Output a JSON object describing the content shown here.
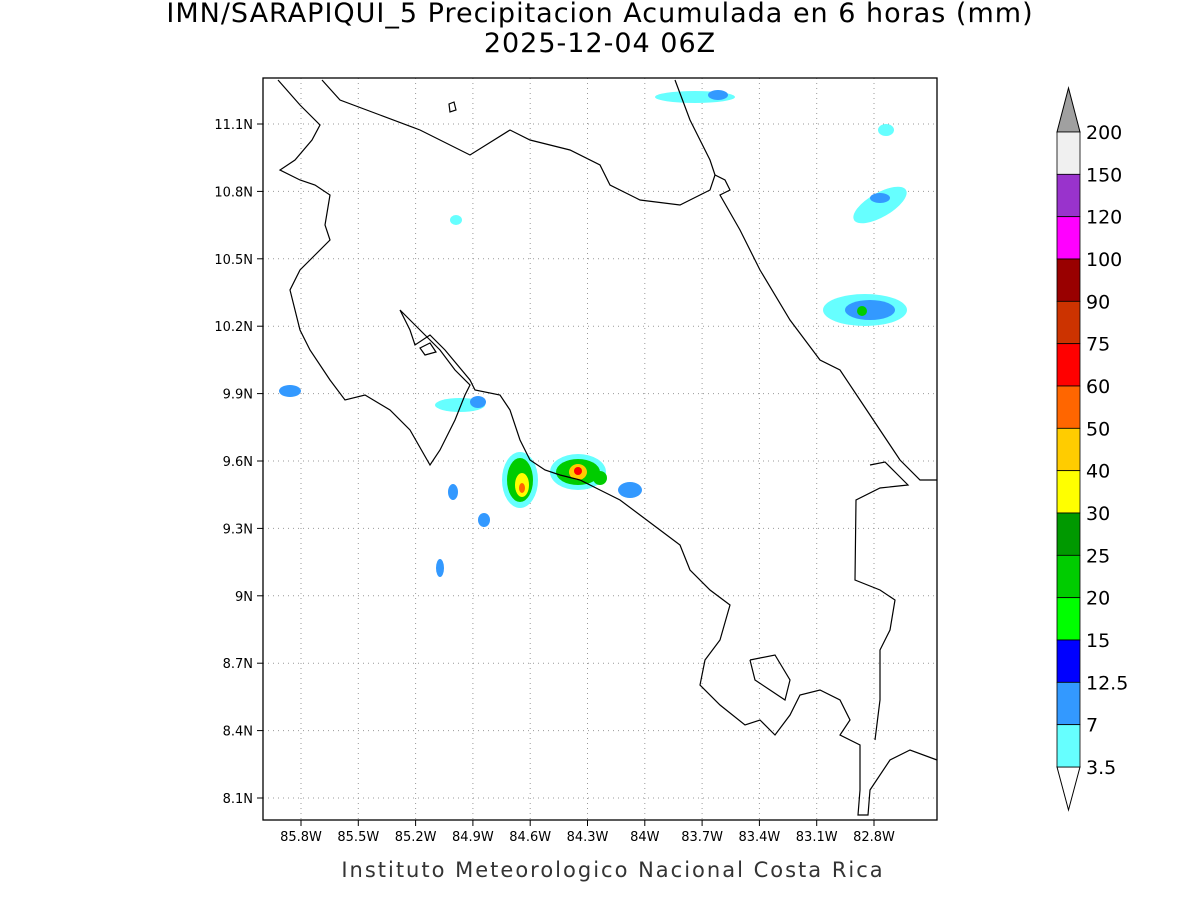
{
  "title": "IMN/SARAPIQUI_5 Precipitacion Acumulada en 6 horas (mm)",
  "subtitle": "2025-12-04 06Z",
  "lat_labels": [
    "11.1N",
    "10.8N",
    "10.5N",
    "10.2N",
    "9.9N",
    "9.6N",
    "9.3N",
    "9N",
    "8.7N",
    "8.4N",
    "8.1N"
  ],
  "lon_labels": [
    "85.8W",
    "85.5W",
    "85.2W",
    "84.9W",
    "84.6W",
    "84.3W",
    "84W",
    "83.7W",
    "83.4W",
    "83.1W",
    "82.8W"
  ],
  "colorbar": {
    "levels": [
      200,
      150,
      120,
      100,
      90,
      75,
      60,
      50,
      40,
      30,
      25,
      20,
      15,
      12.5,
      7,
      3.5
    ],
    "colors": [
      "#f0f0f0",
      "#9933cc",
      "#ff00ff",
      "#990000",
      "#cc3300",
      "#ff0000",
      "#ff6600",
      "#ffcc00",
      "#ffff00",
      "#009900",
      "#00cc00",
      "#00ff00",
      "#0000ff",
      "#3399ff",
      "#66ffff"
    ],
    "over_color": "#a0a0a0",
    "under_color": "#ffffff"
  },
  "footer": "Instituto Meteorologico Nacional Costa Rica"
}
